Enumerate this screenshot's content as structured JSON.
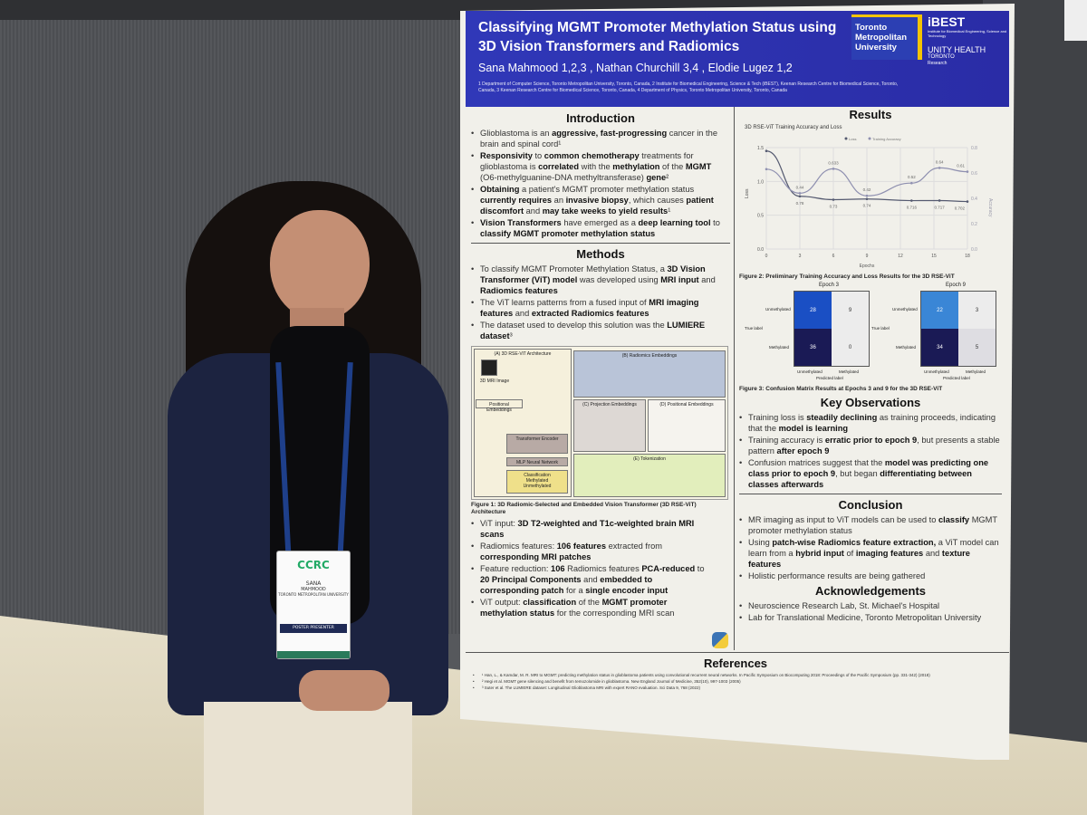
{
  "poster": {
    "title": "Classifying MGMT Promoter Methylation Status using 3D Vision Transformers and Radiomics",
    "authors": "Sana Mahmood 1,2,3 , Nathan Churchill 3,4 , Elodie Lugez 1,2",
    "affiliations": "1 Department of Computer Science, Toronto Metropolitan University, Toronto, Canada, 2 Institute for Biomedical Engineering, Science & Tech (iBEST), Keenan Research Centre for Biomedical Science, Toronto, Canada, 3 Keenan Research Centre for Biomedical Science, Toronto, Canada, 4 Department of Physics, Toronto Metropolitan University, Toronto, Canada",
    "logos": {
      "tmu": "Toronto Metropolitan University",
      "ibest": "iBEST",
      "ibest_sub": "Institute for Biomedical Engineering, Science and Technology",
      "unity": "UNITY HEALTH",
      "unity_sub": "TORONTO",
      "unity_research": "Research"
    },
    "introduction": {
      "heading": "Introduction",
      "items": [
        "Glioblastoma is an <b>aggressive, fast-progressing</b> cancer in the brain and spinal cord¹",
        "<b>Responsivity</b> to <b>common chemotherapy</b> treatments for glioblastoma is <b>correlated</b> with the <b>methylation</b> of the <b>MGMT</b> (O6-methylguanine-DNA methyltransferase) <b>gene</b>²",
        "<b>Obtaining</b> a patient's MGMT promoter methylation status <b>currently requires</b> an <b>invasive biopsy</b>, which causes <b>patient discomfort</b> and <b>may take weeks to yield results</b>¹",
        "<b>Vision Transformers</b> have emerged as a <b>deep learning tool</b> to <b>classify MGMT promoter methylation status</b>"
      ]
    },
    "methods": {
      "heading": "Methods",
      "items": [
        "To classify MGMT Promoter Methylation Status, a <b>3D Vision Transformer (ViT) model</b> was developed using <b>MRI input</b> and <b>Radiomics features</b>",
        "The ViT learns patterns from a fused input of <b>MRI imaging features</b> and <b>extracted Radiomics features</b>",
        "The dataset used to develop this solution was the <b>LUMIERE dataset</b>³"
      ],
      "items2": [
        "ViT input: <b>3D T2-weighted and T1c-weighted brain MRI scans</b>",
        "Radiomics features: <b>106 features</b> extracted from <b>corresponding MRI patches</b>",
        "Feature reduction: <b>106</b> Radiomics features <b>PCA-reduced</b> to <b>20 Principal Components</b> and <b>embedded to corresponding patch</b> for a <b>single encoder input</b>",
        "ViT output: <b>classification</b> of the <b>MGMT promoter methylation status</b> for the corresponding MRI scan"
      ]
    },
    "diagram": {
      "a": "(A) 3D RSE-ViT Architecture",
      "b": "(B) Radiomics Embeddings",
      "c": "(C) Projection Embeddings",
      "d": "(D) Positional Embeddings",
      "e": "(E) Tokenization",
      "encoder": "Transformer Encoder",
      "mlp": "MLP Neural Network",
      "cls": "Classification",
      "cls1": "Methylated",
      "cls2": "Unmethylated",
      "pos": "Positional Embeddings",
      "mri": "3D MRI Image"
    },
    "fig1": "Figure 1: 3D Radiomic-Selected and Embedded Vision Transformer (3D RSE-ViT) Architecture",
    "results": {
      "heading": "Results",
      "chart_title": "3D RSE-ViT Training Accuracy and Loss",
      "legend": [
        "Loss",
        "Training Accuracy"
      ],
      "xlabel": "Epochs",
      "ylabel_left": "Loss",
      "ylabel_right": "Accuracy"
    },
    "fig2": "Figure 2: Preliminary Training Accuracy and Loss Results for the 3D RSE-ViT",
    "fig3": "Figure 3: Confusion Matrix Results at Epochs 3 and 9 for the 3D RSE-ViT",
    "confusion": [
      {
        "title": "Epoch 3",
        "cells": [
          28,
          9,
          36,
          0
        ]
      },
      {
        "title": "Epoch 9",
        "cells": [
          22,
          3,
          34,
          5
        ]
      }
    ],
    "cm_labels": {
      "unmeth": "Unmethylated",
      "meth": "Methylated",
      "true": "True label",
      "pred": "Predicted label"
    },
    "observations": {
      "heading": "Key Observations",
      "items": [
        "Training loss is <b>steadily declining</b> as training proceeds, indicating that the <b>model is learning</b>",
        "Training accuracy is <b>erratic prior to epoch 9</b>, but presents a stable pattern <b>after epoch 9</b>",
        "Confusion matrices suggest that the <b>model was predicting one class prior to epoch 9</b>, but began <b>differentiating between classes afterwards</b>"
      ]
    },
    "conclusion": {
      "heading": "Conclusion",
      "items": [
        "MR imaging as input to ViT models can be used to <b>classify</b> MGMT promoter methylation status",
        "Using <b>patch-wise Radiomics feature extraction,</b> a ViT model can learn from a <b>hybrid input</b> of <b>imaging features</b> and <b>texture features</b>",
        "Holistic performance results are being gathered"
      ]
    },
    "acknowledgements": {
      "heading": "Acknowledgements",
      "items": [
        "Neuroscience Research Lab, St. Michael's Hospital",
        "Lab for Translational Medicine, Toronto Metropolitan University"
      ]
    },
    "references": {
      "heading": "References",
      "items": [
        "¹ Han, L., & Kamdar, M. R. MRI to MGMT: predicting methylation status in glioblastoma patients using convolutional recurrent neural networks. In Pacific Symposium on Biocomputing 2018: Proceedings of the Pacific Symposium (pp. 331-342) (2018)",
        "² Hegi et al. MGMT gene silencing and benefit from temozolomide in glioblastoma. New England Journal of Medicine, 352(10), 997-1003 (2005)",
        "³ Suter et al. The LUMIERE dataset: Longitudinal Glioblastoma MRI with expert RANO evaluation. Sci Data 9, 768 (2022)"
      ]
    }
  },
  "badge": {
    "org": "CCRC",
    "first": "SANA",
    "last": "MAHMOOD",
    "univ": "TORONTO METROPOLITAN UNIVERSITY",
    "role": "POSTER PRESENTER"
  },
  "chart_data": {
    "type": "line",
    "title": "3D RSE-ViT Training Accuracy and Loss",
    "xlabel": "Epochs",
    "ylabel": "Loss",
    "y2label": "Accuracy",
    "x": [
      0,
      3,
      6,
      9,
      13,
      15.5,
      18
    ],
    "series": [
      {
        "name": "Loss",
        "axis": "left",
        "values": [
          1.45,
          0.78,
          0.73,
          0.74,
          0.716,
          0.717,
          0.702
        ],
        "labels": [
          "",
          "0.78",
          "0.73",
          "0.74",
          "0.716",
          "0.717",
          "0.702"
        ],
        "color": "#555a70"
      },
      {
        "name": "Training Accuracy",
        "axis": "right",
        "values": [
          0.63,
          0.44,
          0.633,
          0.42,
          0.52,
          0.64,
          0.61
        ],
        "labels": [
          "",
          "0.44",
          "0.633",
          "0.42",
          "0.52",
          "0.64",
          "0.61"
        ],
        "color": "#8f90b0"
      }
    ],
    "xticks": [
      0,
      3,
      6,
      9,
      12,
      15,
      18
    ],
    "yticks": [
      0.0,
      0.5,
      1.0,
      1.5
    ],
    "y2ticks": [
      0.0,
      0.2,
      0.4,
      0.6,
      0.8
    ],
    "ylim": [
      0,
      1.5
    ],
    "y2lim": [
      0,
      0.8
    ],
    "grid": true,
    "legend": "top"
  }
}
